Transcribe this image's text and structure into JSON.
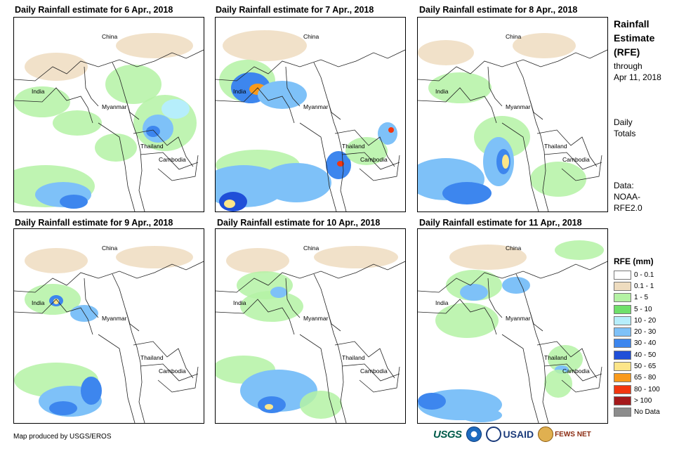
{
  "panels": [
    {
      "title": "Daily Rainfall estimate for 6 Apr., 2018"
    },
    {
      "title": "Daily Rainfall estimate for 7 Apr., 2018"
    },
    {
      "title": "Daily Rainfall estimate for 8 Apr., 2018"
    },
    {
      "title": "Daily Rainfall estimate for 9 Apr., 2018"
    },
    {
      "title": "Daily Rainfall estimate for 10 Apr., 2018"
    },
    {
      "title": "Daily Rainfall estimate for 11 Apr., 2018"
    }
  ],
  "places": {
    "china": "China",
    "india": "India",
    "myanmar": "Myanmar",
    "thailand": "Thailand",
    "cambodia": "Cambodia"
  },
  "side": {
    "title_l1": "Rainfall",
    "title_l2": "Estimate",
    "title_l3": "(RFE)",
    "through_l1": "through",
    "through_l2": "Apr 11, 2018",
    "daily_l1": "Daily",
    "daily_l2": "Totals",
    "data_l1": "Data:",
    "data_l2": "NOAA-",
    "data_l3": "RFE2.0"
  },
  "legend": {
    "title": "RFE (mm)",
    "items": [
      {
        "label": "0 - 0.1",
        "color": "#ffffff"
      },
      {
        "label": "0.1 - 1",
        "color": "#eedcbf"
      },
      {
        "label": "1 - 5",
        "color": "#b4f2a4"
      },
      {
        "label": "5 - 10",
        "color": "#6fe06a"
      },
      {
        "label": "10 - 20",
        "color": "#b6eefb"
      },
      {
        "label": "20 - 30",
        "color": "#7ec1f8"
      },
      {
        "label": "30 - 40",
        "color": "#3d86ee"
      },
      {
        "label": "40 - 50",
        "color": "#1f4fd8"
      },
      {
        "label": "50 - 65",
        "color": "#fce589"
      },
      {
        "label": "65 - 80",
        "color": "#f99a1c"
      },
      {
        "label": "80 - 100",
        "color": "#f2360f"
      },
      {
        "label": "> 100",
        "color": "#a5191b"
      },
      {
        "label": "No Data",
        "color": "#8c8c8c"
      }
    ]
  },
  "credit": "Map produced by USGS/EROS",
  "logos": {
    "usgs": "USGS",
    "usaid": "USAID",
    "fews": "FEWS NET"
  }
}
